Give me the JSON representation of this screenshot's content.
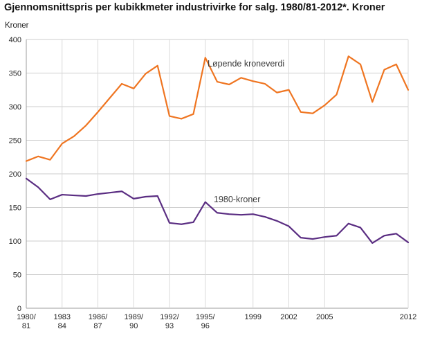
{
  "title": "Gjennomsnittspris per kubikkmeter industrivirke for salg. 1980/81-2012*. Kroner",
  "chart_data": {
    "type": "line",
    "title": "Gjennomsnittspris per kubikkmeter industrivirke for salg. 1980/81-2012*. Kroner",
    "xlabel": "",
    "ylabel": "Kroner",
    "ylim": [
      0,
      400
    ],
    "y_ticks": [
      0,
      50,
      100,
      150,
      200,
      250,
      300,
      350,
      400
    ],
    "grid": true,
    "legend_position": "inline",
    "grid_color": "#cccccc",
    "axis_color": "#9e9e9e",
    "x": [
      "1980/81",
      "1981/82",
      "1982/83",
      "1983/84",
      "1984/85",
      "1985/86",
      "1986/87",
      "1987/88",
      "1988/89",
      "1989/90",
      "1990/91",
      "1991/92",
      "1992/93",
      "1993/94",
      "1994/95",
      "1995/96",
      "1996",
      "1997",
      "1998",
      "1999",
      "2000",
      "2001",
      "2002",
      "2003",
      "2004",
      "2005",
      "2006",
      "2007",
      "2008",
      "2009",
      "2010",
      "2011",
      "2012"
    ],
    "x_ticks": [
      {
        "index": 0,
        "lines": [
          "1980/",
          "81"
        ]
      },
      {
        "index": 3,
        "lines": [
          "1983",
          "84"
        ]
      },
      {
        "index": 6,
        "lines": [
          "1986/",
          "87"
        ]
      },
      {
        "index": 9,
        "lines": [
          "1989/",
          "90"
        ]
      },
      {
        "index": 12,
        "lines": [
          "1992/",
          "93"
        ]
      },
      {
        "index": 15,
        "lines": [
          "1995/",
          "96"
        ]
      },
      {
        "index": 19,
        "lines": [
          "1999"
        ]
      },
      {
        "index": 22,
        "lines": [
          "2002"
        ]
      },
      {
        "index": 25,
        "lines": [
          "2005"
        ]
      },
      {
        "index": 32,
        "lines": [
          "2012"
        ]
      }
    ],
    "series": [
      {
        "name": "Løpende kroneverdi",
        "color": "#ef7521",
        "values": [
          219,
          226,
          221,
          245,
          256,
          272,
          292,
          313,
          334,
          327,
          349,
          361,
          286,
          282,
          289,
          373,
          337,
          333,
          343,
          338,
          334,
          321,
          325,
          292,
          290,
          302,
          318,
          375,
          363,
          307,
          355,
          363,
          325
        ]
      },
      {
        "name": "1980-kroner",
        "color": "#5a2d82",
        "values": [
          193,
          180,
          162,
          169,
          168,
          167,
          170,
          172,
          174,
          163,
          166,
          167,
          127,
          125,
          128,
          158,
          142,
          140,
          139,
          140,
          136,
          130,
          122,
          105,
          103,
          106,
          108,
          126,
          120,
          97,
          108,
          111,
          98
        ]
      }
    ]
  }
}
